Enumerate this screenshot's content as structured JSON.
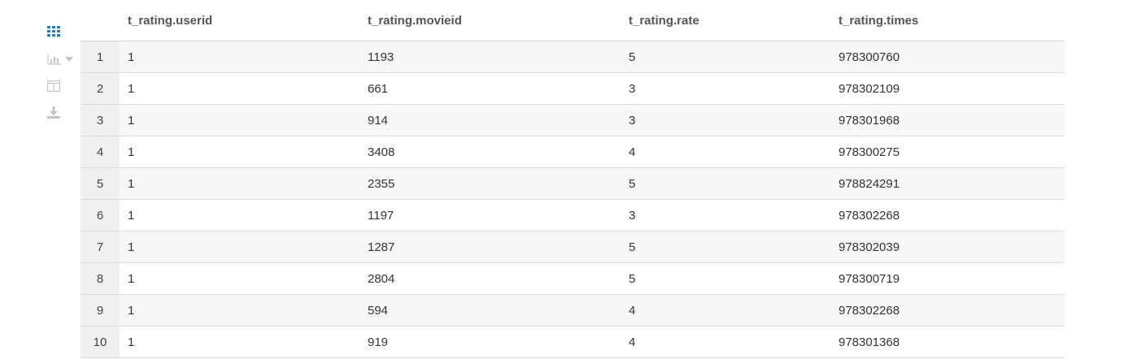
{
  "toolbar": {
    "icons": [
      "grid-icon",
      "bar-chart-icon",
      "columns-icon",
      "download-icon"
    ],
    "active_color": "#1f7bbf",
    "inactive_color": "#c4c4c4"
  },
  "table": {
    "columns": [
      "t_rating.userid",
      "t_rating.movieid",
      "t_rating.rate",
      "t_rating.times"
    ],
    "rows": [
      {
        "n": "1",
        "userid": "1",
        "movieid": "1193",
        "rate": "5",
        "times": "978300760"
      },
      {
        "n": "2",
        "userid": "1",
        "movieid": "661",
        "rate": "3",
        "times": "978302109"
      },
      {
        "n": "3",
        "userid": "1",
        "movieid": "914",
        "rate": "3",
        "times": "978301968"
      },
      {
        "n": "4",
        "userid": "1",
        "movieid": "3408",
        "rate": "4",
        "times": "978300275"
      },
      {
        "n": "5",
        "userid": "1",
        "movieid": "2355",
        "rate": "5",
        "times": "978824291"
      },
      {
        "n": "6",
        "userid": "1",
        "movieid": "1197",
        "rate": "3",
        "times": "978302268"
      },
      {
        "n": "7",
        "userid": "1",
        "movieid": "1287",
        "rate": "5",
        "times": "978302039"
      },
      {
        "n": "8",
        "userid": "1",
        "movieid": "2804",
        "rate": "5",
        "times": "978300719"
      },
      {
        "n": "9",
        "userid": "1",
        "movieid": "594",
        "rate": "4",
        "times": "978302268"
      },
      {
        "n": "10",
        "userid": "1",
        "movieid": "919",
        "rate": "4",
        "times": "978301368"
      }
    ]
  }
}
